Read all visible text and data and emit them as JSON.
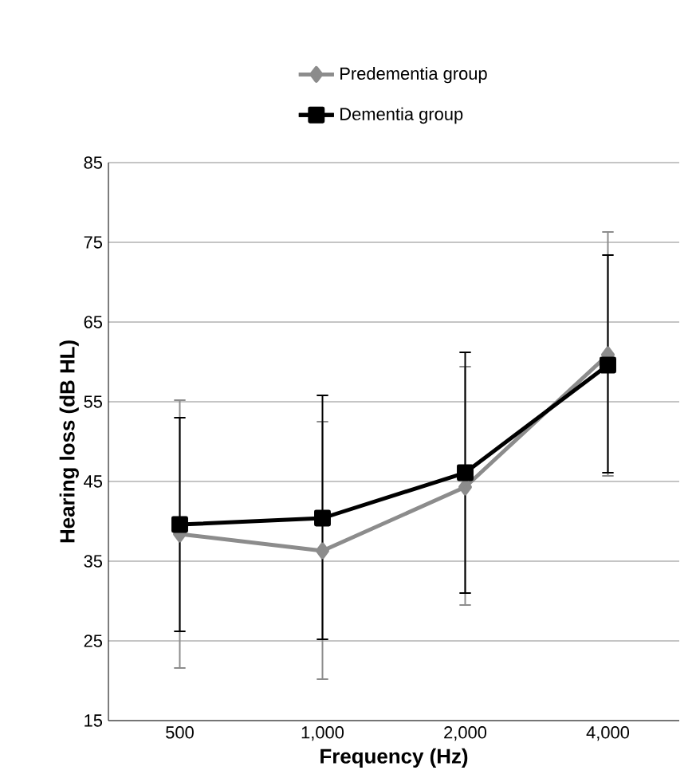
{
  "chart_data": {
    "type": "line",
    "xlabel": "Frequency (Hz)",
    "ylabel": "Hearing loss (dB HL)",
    "categories": [
      "500",
      "1,000",
      "2,000",
      "4,000"
    ],
    "series": [
      {
        "name": "Predementia group",
        "color": "#8c8c8c",
        "marker": "diamond",
        "values": [
          38.4,
          36.3,
          44.3,
          60.9
        ],
        "errors": [
          [
            21.6,
            55.2
          ],
          [
            20.2,
            52.5
          ],
          [
            29.5,
            59.4
          ],
          [
            45.7,
            76.3
          ]
        ]
      },
      {
        "name": "Dementia group",
        "color": "#000000",
        "marker": "square",
        "values": [
          39.6,
          40.4,
          46.1,
          59.6
        ],
        "errors": [
          [
            26.2,
            53.0
          ],
          [
            25.2,
            55.8
          ],
          [
            31.0,
            61.2
          ],
          [
            46.1,
            73.4
          ]
        ]
      }
    ],
    "ylim": [
      15,
      85
    ],
    "yticks": [
      15,
      25,
      35,
      45,
      55,
      65,
      75,
      85
    ],
    "grid": "y",
    "legend": "top",
    "line_style": "solid"
  }
}
